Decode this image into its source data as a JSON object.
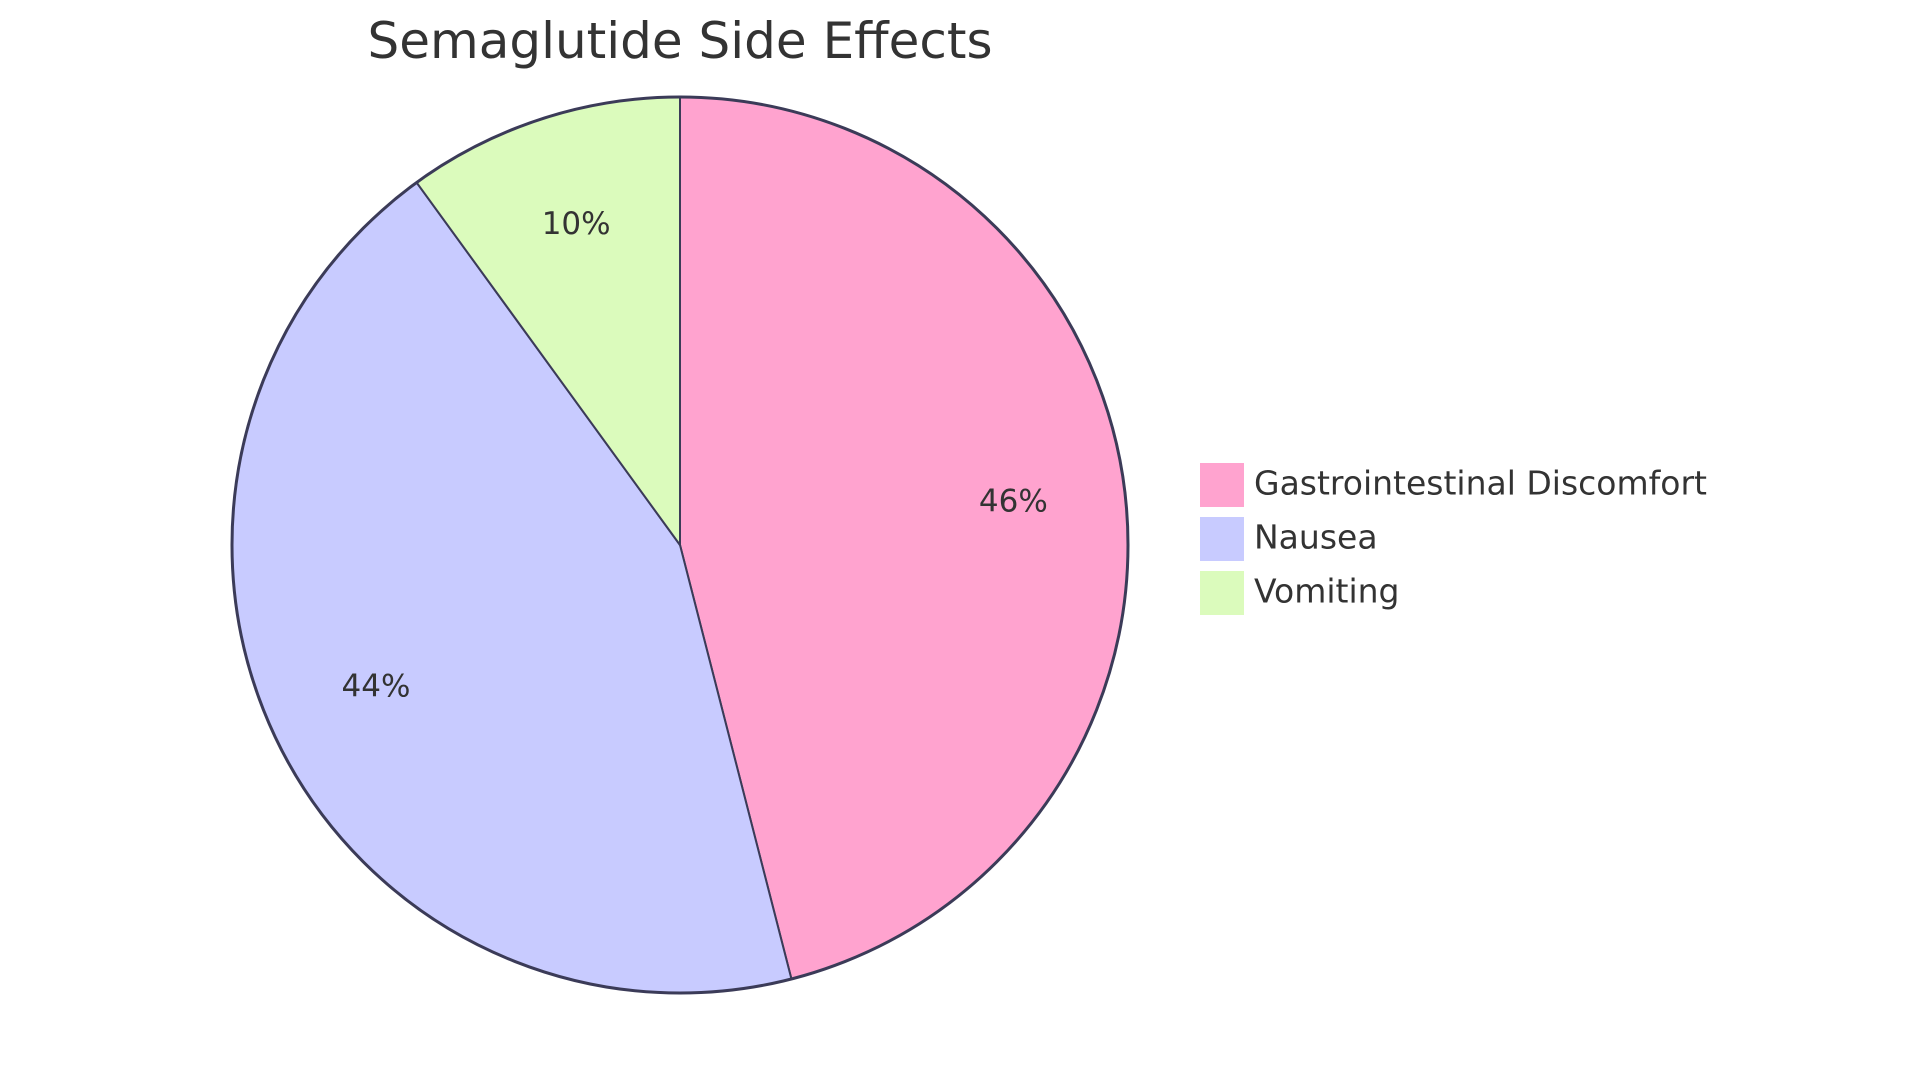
{
  "chart_data": {
    "type": "pie",
    "title": "Semaglutide Side Effects",
    "categories": [
      "Gastrointestinal Discomfort",
      "Nausea",
      "Vomiting"
    ],
    "values": [
      46,
      44,
      10
    ],
    "labels": [
      "46%",
      "44%",
      "10%"
    ],
    "colors": [
      "#FFA3CF",
      "#C8CBFF",
      "#DBFBBC"
    ],
    "stroke_color": "#3B3B58",
    "legend": "right"
  }
}
